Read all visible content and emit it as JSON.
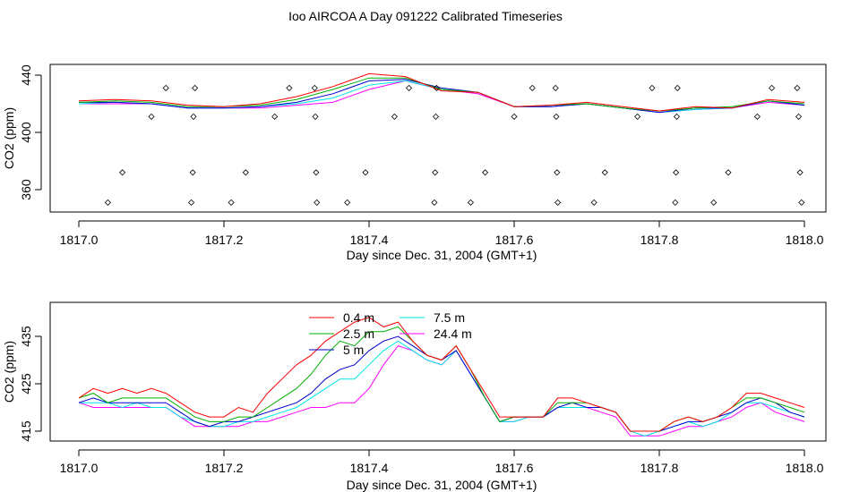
{
  "title": "Ioo AIRCOA A  Day 091222  Calibrated Timeseries",
  "colors": {
    "0.4 m": "#ff0000",
    "2.5 m": "#00b000",
    "5 m": "#0000cc",
    "7.5 m": "#00e5e5",
    "24.4 m": "#ff00ff"
  },
  "chart_data": [
    {
      "type": "line",
      "xlabel": "Day since Dec. 31, 2004 (GMT+1)",
      "ylabel": "CO2 (ppm)",
      "xlim": [
        1817.0,
        1818.0
      ],
      "ylim": [
        348,
        448
      ],
      "xticks": [
        "1817.0",
        "1817.2",
        "1817.4",
        "1817.6",
        "1817.8",
        "1818.0"
      ],
      "yticks": [
        "360",
        "400",
        "440"
      ],
      "x": [
        1817.0,
        1817.05,
        1817.1,
        1817.15,
        1817.2,
        1817.25,
        1817.3,
        1817.35,
        1817.4,
        1817.45,
        1817.5,
        1817.55,
        1817.6,
        1817.65,
        1817.7,
        1817.75,
        1817.8,
        1817.85,
        1817.9,
        1817.95,
        1818.0
      ],
      "series": [
        {
          "name": "0.4 m",
          "values": [
            422,
            423,
            422,
            419,
            418,
            420,
            425,
            432,
            441,
            439,
            429,
            428,
            418,
            419,
            421,
            418,
            415,
            418,
            417,
            423,
            421
          ]
        },
        {
          "name": "2.5 m",
          "values": [
            421,
            422,
            421,
            418,
            418,
            419,
            423,
            430,
            438,
            438,
            430,
            428,
            418,
            419,
            420,
            417,
            415,
            417,
            418,
            422,
            420
          ]
        },
        {
          "name": "5 m",
          "values": [
            421,
            421,
            420,
            417,
            417,
            418,
            421,
            427,
            436,
            437,
            431,
            428,
            418,
            418,
            420,
            417,
            414,
            417,
            417,
            422,
            419
          ]
        },
        {
          "name": "7.5 m",
          "values": [
            420,
            421,
            420,
            417,
            417,
            418,
            420,
            424,
            433,
            436,
            430,
            428,
            418,
            418,
            420,
            417,
            414,
            416,
            417,
            422,
            419
          ]
        },
        {
          "name": "24.4 m",
          "values": [
            420,
            420,
            420,
            417,
            417,
            417,
            419,
            421,
            430,
            436,
            430,
            427,
            418,
            418,
            420,
            417,
            414,
            416,
            417,
            421,
            419
          ]
        }
      ],
      "calibration_points": [
        {
          "x": 1817.04,
          "y": 351
        },
        {
          "x": 1817.06,
          "y": 372
        },
        {
          "x": 1817.1,
          "y": 411
        },
        {
          "x": 1817.12,
          "y": 431
        },
        {
          "x": 1817.155,
          "y": 351
        },
        {
          "x": 1817.157,
          "y": 372
        },
        {
          "x": 1817.158,
          "y": 411
        },
        {
          "x": 1817.16,
          "y": 431
        },
        {
          "x": 1817.21,
          "y": 351
        },
        {
          "x": 1817.23,
          "y": 372
        },
        {
          "x": 1817.27,
          "y": 411
        },
        {
          "x": 1817.29,
          "y": 431
        },
        {
          "x": 1817.325,
          "y": 431
        },
        {
          "x": 1817.326,
          "y": 411
        },
        {
          "x": 1817.327,
          "y": 372
        },
        {
          "x": 1817.328,
          "y": 351
        },
        {
          "x": 1817.37,
          "y": 351
        },
        {
          "x": 1817.395,
          "y": 372
        },
        {
          "x": 1817.435,
          "y": 411
        },
        {
          "x": 1817.455,
          "y": 431
        },
        {
          "x": 1817.49,
          "y": 351
        },
        {
          "x": 1817.491,
          "y": 372
        },
        {
          "x": 1817.492,
          "y": 411
        },
        {
          "x": 1817.493,
          "y": 431
        },
        {
          "x": 1817.54,
          "y": 351
        },
        {
          "x": 1817.56,
          "y": 372
        },
        {
          "x": 1817.6,
          "y": 411
        },
        {
          "x": 1817.625,
          "y": 431
        },
        {
          "x": 1817.657,
          "y": 431
        },
        {
          "x": 1817.658,
          "y": 411
        },
        {
          "x": 1817.659,
          "y": 372
        },
        {
          "x": 1817.66,
          "y": 351
        },
        {
          "x": 1817.71,
          "y": 351
        },
        {
          "x": 1817.725,
          "y": 372
        },
        {
          "x": 1817.77,
          "y": 411
        },
        {
          "x": 1817.79,
          "y": 431
        },
        {
          "x": 1817.822,
          "y": 351
        },
        {
          "x": 1817.823,
          "y": 372
        },
        {
          "x": 1817.824,
          "y": 411
        },
        {
          "x": 1817.825,
          "y": 431
        },
        {
          "x": 1817.875,
          "y": 351
        },
        {
          "x": 1817.895,
          "y": 372
        },
        {
          "x": 1817.935,
          "y": 411
        },
        {
          "x": 1817.955,
          "y": 431
        },
        {
          "x": 1817.99,
          "y": 431
        },
        {
          "x": 1817.992,
          "y": 411
        },
        {
          "x": 1817.994,
          "y": 372
        },
        {
          "x": 1817.996,
          "y": 351
        }
      ]
    },
    {
      "type": "line",
      "xlabel": "Day since Dec. 31, 2004 (GMT+1)",
      "ylabel": "CO2 (ppm)",
      "xlim": [
        1817.0,
        1818.0
      ],
      "ylim": [
        413,
        440
      ],
      "xticks": [
        "1817.0",
        "1817.2",
        "1817.4",
        "1817.6",
        "1817.8",
        "1818.0"
      ],
      "yticks": [
        "415",
        "425",
        "435"
      ],
      "legend": "top-center",
      "x": [
        1817.0,
        1817.02,
        1817.04,
        1817.06,
        1817.08,
        1817.1,
        1817.12,
        1817.14,
        1817.16,
        1817.18,
        1817.2,
        1817.22,
        1817.24,
        1817.26,
        1817.28,
        1817.3,
        1817.32,
        1817.34,
        1817.36,
        1817.38,
        1817.4,
        1817.42,
        1817.44,
        1817.46,
        1817.48,
        1817.5,
        1817.52,
        1817.54,
        1817.56,
        1817.58,
        1817.6,
        1817.62,
        1817.64,
        1817.66,
        1817.68,
        1817.7,
        1817.72,
        1817.74,
        1817.76,
        1817.78,
        1817.8,
        1817.82,
        1817.84,
        1817.86,
        1817.88,
        1817.9,
        1817.92,
        1817.94,
        1817.96,
        1817.98,
        1818.0
      ],
      "series": [
        {
          "name": "0.4 m",
          "values": [
            422,
            424,
            423,
            424,
            423,
            424,
            423,
            421,
            419,
            418,
            418,
            420,
            419,
            423,
            426,
            429,
            431,
            434,
            436,
            438,
            439,
            437,
            438,
            434,
            431,
            430,
            433,
            428,
            423,
            418,
            418,
            418,
            418,
            422,
            422,
            421,
            420,
            419,
            415,
            415,
            415,
            417,
            418,
            417,
            418,
            420,
            423,
            423,
            422,
            421,
            420
          ]
        },
        {
          "name": "2.5 m",
          "values": [
            422,
            423,
            421,
            422,
            422,
            422,
            422,
            420,
            418,
            417,
            417,
            418,
            418,
            420,
            422,
            424,
            427,
            431,
            434,
            433,
            436,
            436,
            437,
            434,
            431,
            430,
            433,
            428,
            422,
            417,
            418,
            418,
            418,
            421,
            421,
            421,
            420,
            419,
            415,
            415,
            415,
            417,
            418,
            417,
            418,
            420,
            422,
            422,
            421,
            420,
            419
          ]
        },
        {
          "name": "5 m",
          "values": [
            421,
            422,
            421,
            421,
            421,
            421,
            421,
            419,
            417,
            416,
            417,
            417,
            418,
            419,
            420,
            421,
            423,
            426,
            428,
            429,
            432,
            434,
            435,
            433,
            431,
            430,
            432,
            427,
            422,
            417,
            418,
            418,
            418,
            420,
            421,
            420,
            420,
            419,
            415,
            415,
            415,
            416,
            417,
            417,
            418,
            419,
            421,
            422,
            421,
            419,
            418
          ]
        },
        {
          "name": "7.5 m",
          "values": [
            421,
            421,
            421,
            420,
            421,
            420,
            420,
            418,
            417,
            416,
            416,
            417,
            417,
            418,
            419,
            420,
            422,
            424,
            426,
            426,
            429,
            432,
            434,
            432,
            430,
            429,
            432,
            427,
            422,
            417,
            417,
            418,
            418,
            420,
            420,
            420,
            420,
            419,
            415,
            414,
            415,
            416,
            417,
            416,
            417,
            419,
            421,
            421,
            420,
            419,
            418
          ]
        },
        {
          "name": "24.4 m",
          "values": [
            421,
            420,
            420,
            420,
            420,
            420,
            420,
            418,
            416,
            416,
            416,
            416,
            417,
            417,
            418,
            419,
            420,
            420,
            421,
            421,
            424,
            429,
            433,
            432,
            430,
            429,
            432,
            427,
            422,
            417,
            417,
            418,
            418,
            420,
            420,
            420,
            419,
            418,
            414,
            414,
            414,
            415,
            416,
            416,
            417,
            418,
            420,
            421,
            419,
            418,
            417
          ]
        }
      ]
    }
  ]
}
